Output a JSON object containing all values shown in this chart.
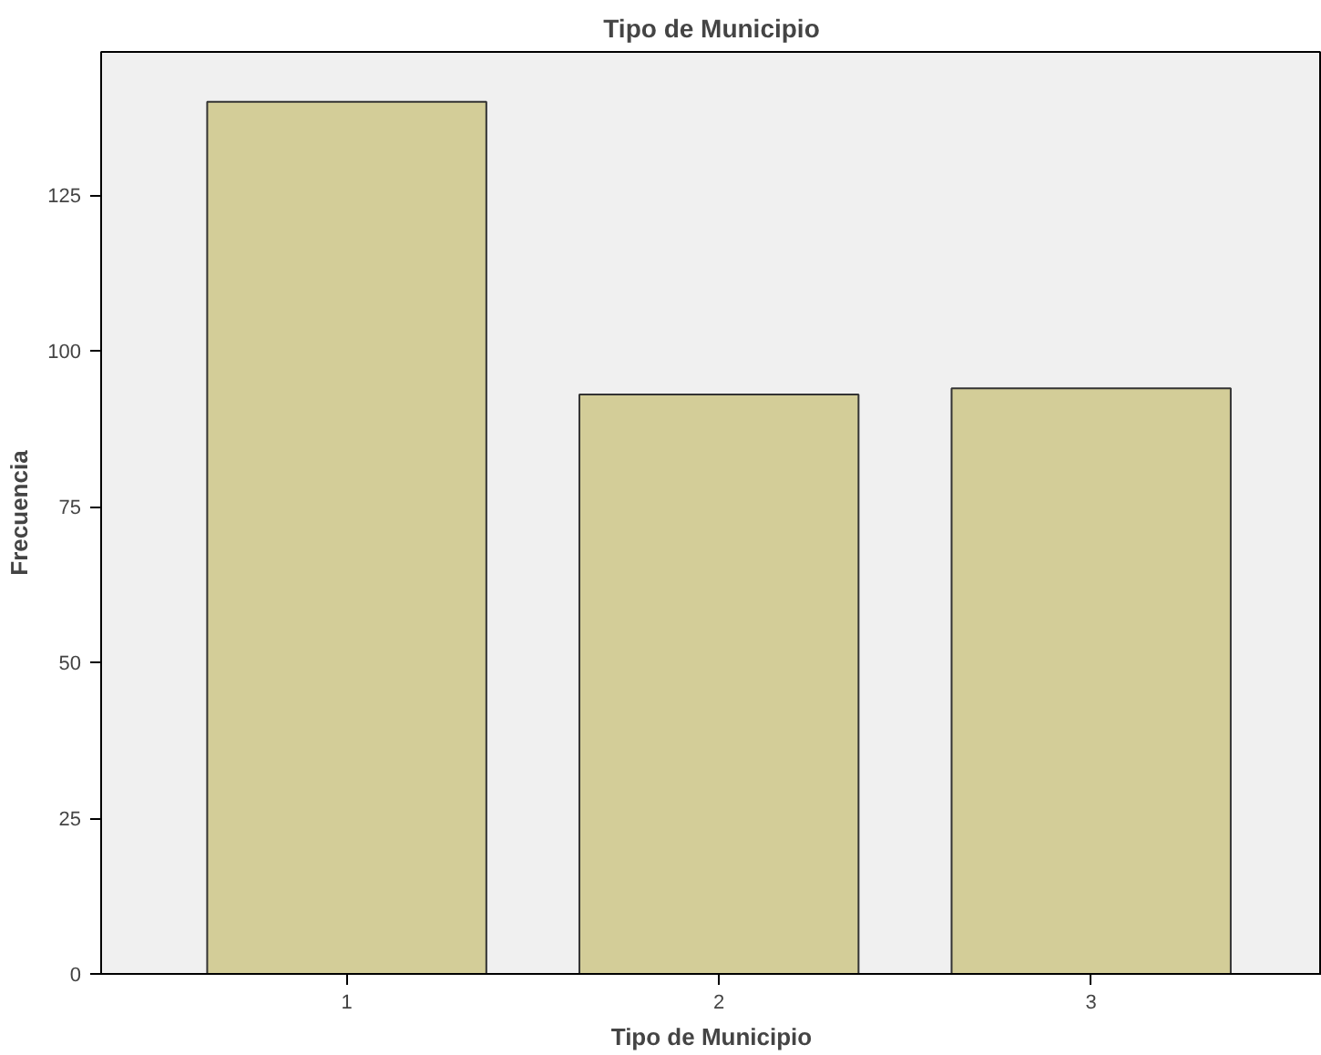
{
  "chart_data": {
    "type": "bar",
    "title": "Tipo de Municipio",
    "xlabel": "Tipo de Municipio",
    "ylabel": "Frecuencia",
    "categories": [
      "1",
      "2",
      "3"
    ],
    "values": [
      140,
      93,
      94
    ],
    "color": "#d3cd98",
    "ylim": [
      0,
      148
    ],
    "yticks": [
      0,
      25,
      50,
      75,
      100,
      125
    ],
    "grid": false
  }
}
